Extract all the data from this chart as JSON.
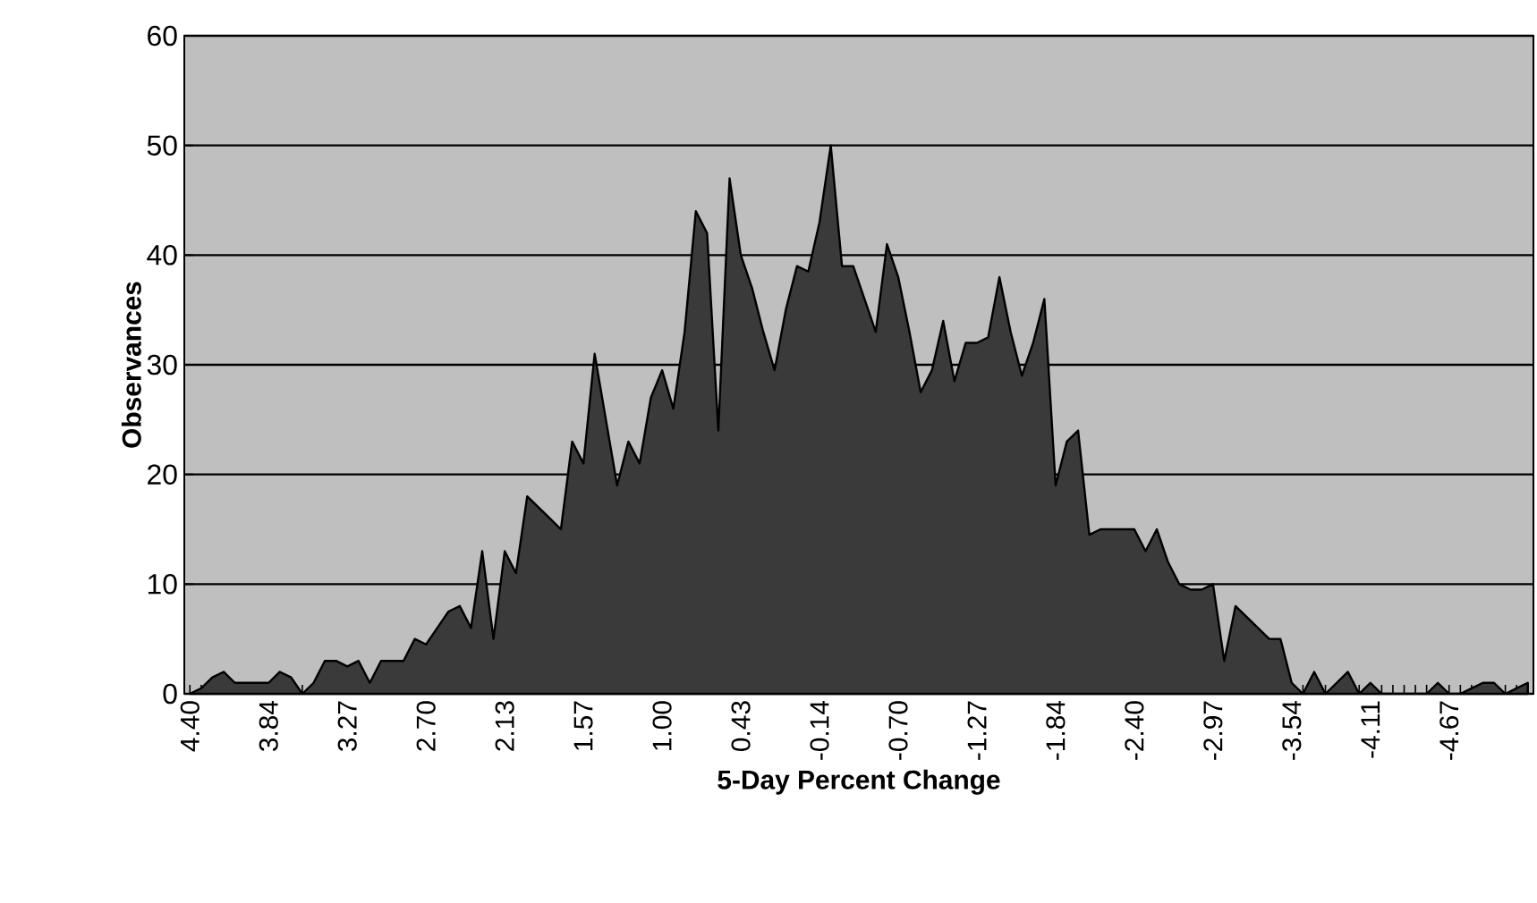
{
  "chart_data": {
    "type": "area",
    "xlabel": "5-Day Percent Change",
    "ylabel": "Observances",
    "categories": [
      "4.40",
      null,
      null,
      null,
      null,
      null,
      null,
      "3.84",
      null,
      null,
      null,
      null,
      null,
      null,
      "3.27",
      null,
      null,
      null,
      null,
      null,
      null,
      "2.70",
      null,
      null,
      null,
      null,
      null,
      null,
      "2.13",
      null,
      null,
      null,
      null,
      null,
      null,
      "1.57",
      null,
      null,
      null,
      null,
      null,
      null,
      "1.00",
      null,
      null,
      null,
      null,
      null,
      null,
      "0.43",
      null,
      null,
      null,
      null,
      null,
      null,
      "-0.14",
      null,
      null,
      null,
      null,
      null,
      null,
      "-0.70",
      null,
      null,
      null,
      null,
      null,
      null,
      "-1.27",
      null,
      null,
      null,
      null,
      null,
      null,
      "-1.84",
      null,
      null,
      null,
      null,
      null,
      null,
      "-2.40",
      null,
      null,
      null,
      null,
      null,
      null,
      "-2.97",
      null,
      null,
      null,
      null,
      null,
      null,
      "-3.54",
      null,
      null,
      null,
      null,
      null,
      null,
      "-4.11",
      null,
      null,
      null,
      null,
      null,
      null,
      "-4.67",
      null,
      null,
      null,
      null,
      null,
      null,
      null
    ],
    "values": [
      0,
      0.5,
      1.5,
      2,
      1,
      1,
      1,
      1,
      2,
      1.5,
      0,
      1,
      3,
      3,
      2.5,
      3,
      1,
      3,
      3,
      3,
      5,
      4.5,
      6,
      7.5,
      8,
      6,
      13,
      5,
      13,
      11,
      18,
      17,
      16,
      15,
      23,
      21,
      31,
      25,
      19,
      23,
      21,
      27,
      29.5,
      26,
      33,
      44,
      42,
      24,
      47,
      40,
      37,
      33,
      29.5,
      35,
      39,
      38.5,
      43,
      50,
      39,
      39,
      36,
      33,
      41,
      38,
      33,
      27.5,
      29.5,
      34,
      28.5,
      32,
      32,
      32.5,
      38,
      33,
      29,
      32,
      36,
      19,
      23,
      24,
      14.5,
      15,
      15,
      15,
      15,
      13,
      15,
      12,
      10,
      9.5,
      9.5,
      10,
      3,
      8,
      7,
      6,
      5,
      5,
      1,
      0,
      2,
      0,
      1,
      2,
      0,
      1,
      0,
      0,
      0,
      0,
      0,
      1,
      0,
      0,
      0.5,
      1,
      1,
      0,
      0.5,
      1
    ],
    "color": "#3a3a3a",
    "ylim": [
      0,
      60
    ],
    "yticks": [
      0,
      10,
      20,
      30,
      40,
      50,
      60
    ],
    "grid": "y"
  }
}
